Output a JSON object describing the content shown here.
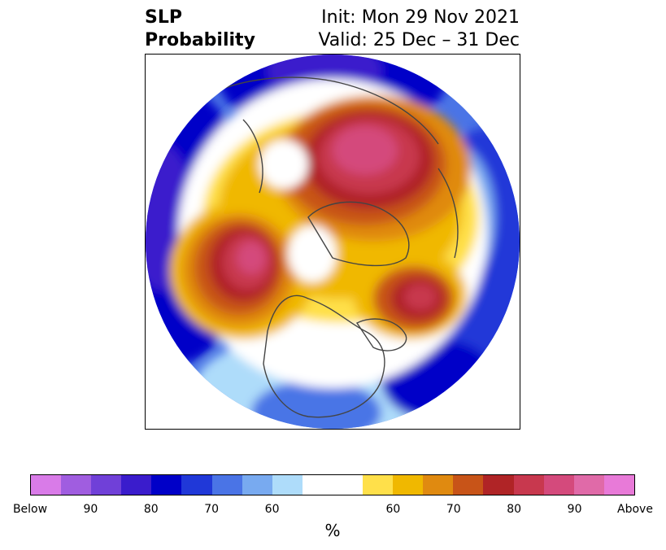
{
  "title": {
    "left_line1": "SLP",
    "left_line2": "Probability",
    "right_line1": "Init: Mon 29 Nov 2021",
    "right_line2": "Valid: 25 Dec – 31 Dec"
  },
  "colorbar": {
    "label": "%",
    "colors": [
      "#d97be8",
      "#a05de0",
      "#7040d8",
      "#3a1ccc",
      "#0000c8",
      "#2038d8",
      "#4a74e6",
      "#78aaf0",
      "#aedcfa",
      "#ffffff",
      "#ffffff",
      "#ffe04a",
      "#f0b800",
      "#e08a10",
      "#c85418",
      "#b02426",
      "#c8384e",
      "#d44a7c",
      "#e06aa8",
      "#e87ad8"
    ],
    "ticks": [
      "Below",
      "90",
      "80",
      "70",
      "60",
      "60",
      "70",
      "80",
      "90",
      "Above"
    ]
  }
}
